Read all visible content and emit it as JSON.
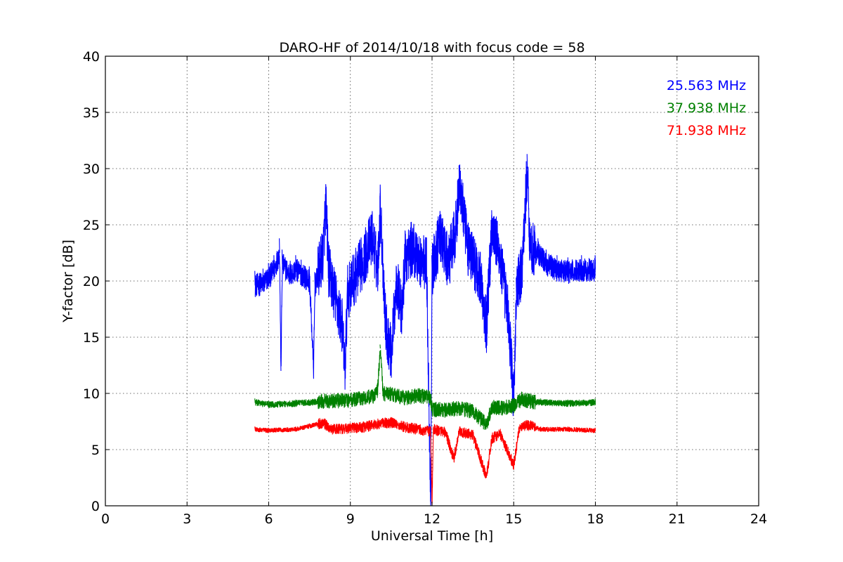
{
  "chart_data": {
    "type": "line",
    "title": "DARO-HF of 2014/10/18 with focus code = 58",
    "xlabel": "Universal Time [h]",
    "ylabel": "Y-factor [dB]",
    "xlim": [
      0,
      24
    ],
    "ylim": [
      0,
      40
    ],
    "xticks": [
      0,
      3,
      6,
      9,
      12,
      15,
      18,
      21,
      24
    ],
    "yticks": [
      0,
      5,
      10,
      15,
      20,
      25,
      30,
      35,
      40
    ],
    "grid": true,
    "legend_position": "top-right",
    "series": [
      {
        "name": "25.563 MHz",
        "color": "#0000ff",
        "noise": 1.3,
        "points": [
          [
            5.5,
            19.6
          ],
          [
            5.8,
            19.8
          ],
          [
            6.0,
            20.3
          ],
          [
            6.2,
            21.0
          ],
          [
            6.4,
            22.5
          ],
          [
            6.45,
            12.0
          ],
          [
            6.5,
            21.5
          ],
          [
            6.8,
            20.5
          ],
          [
            7.0,
            21.0
          ],
          [
            7.2,
            20.6
          ],
          [
            7.5,
            20.0
          ],
          [
            7.65,
            12.2
          ],
          [
            7.7,
            19.5
          ],
          [
            8.0,
            22.5
          ],
          [
            8.1,
            27.0
          ],
          [
            8.2,
            21.0
          ],
          [
            8.5,
            18.0
          ],
          [
            8.7,
            16.0
          ],
          [
            8.8,
            12.0
          ],
          [
            8.9,
            19.0
          ],
          [
            9.2,
            20.5
          ],
          [
            9.5,
            22.0
          ],
          [
            9.8,
            24.0
          ],
          [
            10.0,
            21.0
          ],
          [
            10.1,
            26.5
          ],
          [
            10.3,
            16.0
          ],
          [
            10.5,
            13.5
          ],
          [
            10.7,
            20.0
          ],
          [
            10.9,
            17.0
          ],
          [
            11.0,
            22.0
          ],
          [
            11.3,
            23.0
          ],
          [
            11.5,
            22.0
          ],
          [
            11.8,
            21.5
          ],
          [
            11.95,
            0.2
          ],
          [
            12.0,
            21.0
          ],
          [
            12.3,
            24.0
          ],
          [
            12.6,
            21.5
          ],
          [
            12.9,
            25.0
          ],
          [
            13.0,
            29.0
          ],
          [
            13.3,
            23.0
          ],
          [
            13.5,
            22.0
          ],
          [
            13.8,
            20.0
          ],
          [
            14.0,
            16.0
          ],
          [
            14.2,
            25.0
          ],
          [
            14.5,
            22.0
          ],
          [
            14.8,
            17.0
          ],
          [
            15.0,
            9.5
          ],
          [
            15.1,
            19.0
          ],
          [
            15.3,
            21.0
          ],
          [
            15.5,
            30.0
          ],
          [
            15.6,
            23.0
          ],
          [
            15.9,
            22.5
          ],
          [
            16.2,
            21.5
          ],
          [
            16.6,
            21.0
          ],
          [
            17.0,
            20.8
          ],
          [
            17.5,
            21.0
          ],
          [
            18.0,
            21.0
          ]
        ]
      },
      {
        "name": "37.938 MHz",
        "color": "#008000",
        "noise": 0.35,
        "points": [
          [
            5.5,
            9.2
          ],
          [
            6.0,
            9.0
          ],
          [
            7.0,
            9.1
          ],
          [
            8.0,
            9.3
          ],
          [
            9.0,
            9.4
          ],
          [
            9.5,
            9.6
          ],
          [
            9.9,
            9.8
          ],
          [
            10.0,
            10.3
          ],
          [
            10.1,
            14.0
          ],
          [
            10.2,
            10.0
          ],
          [
            10.5,
            9.9
          ],
          [
            11.0,
            9.6
          ],
          [
            11.5,
            9.8
          ],
          [
            11.95,
            9.6
          ],
          [
            12.0,
            8.6
          ],
          [
            12.5,
            8.5
          ],
          [
            13.0,
            8.7
          ],
          [
            13.5,
            8.4
          ],
          [
            14.0,
            7.2
          ],
          [
            14.2,
            8.8
          ],
          [
            14.6,
            8.7
          ],
          [
            15.0,
            8.9
          ],
          [
            15.3,
            9.5
          ],
          [
            15.6,
            9.3
          ],
          [
            16.0,
            9.2
          ],
          [
            17.0,
            9.1
          ],
          [
            18.0,
            9.2
          ]
        ]
      },
      {
        "name": "71.938 MHz",
        "color": "#ff0000",
        "noise": 0.25,
        "points": [
          [
            5.5,
            6.8
          ],
          [
            6.0,
            6.7
          ],
          [
            7.0,
            6.8
          ],
          [
            8.0,
            7.4
          ],
          [
            8.3,
            6.8
          ],
          [
            9.0,
            6.9
          ],
          [
            9.5,
            7.0
          ],
          [
            10.0,
            7.3
          ],
          [
            10.5,
            7.4
          ],
          [
            11.0,
            7.0
          ],
          [
            11.5,
            6.8
          ],
          [
            11.95,
            6.6
          ],
          [
            12.0,
            0.1
          ],
          [
            12.05,
            6.8
          ],
          [
            12.5,
            6.5
          ],
          [
            12.8,
            4.2
          ],
          [
            13.0,
            6.6
          ],
          [
            13.5,
            6.3
          ],
          [
            14.0,
            2.5
          ],
          [
            14.2,
            6.0
          ],
          [
            14.5,
            6.4
          ],
          [
            15.0,
            3.6
          ],
          [
            15.2,
            6.8
          ],
          [
            15.5,
            7.2
          ],
          [
            16.0,
            6.8
          ],
          [
            17.0,
            6.8
          ],
          [
            18.0,
            6.7
          ]
        ]
      }
    ]
  }
}
